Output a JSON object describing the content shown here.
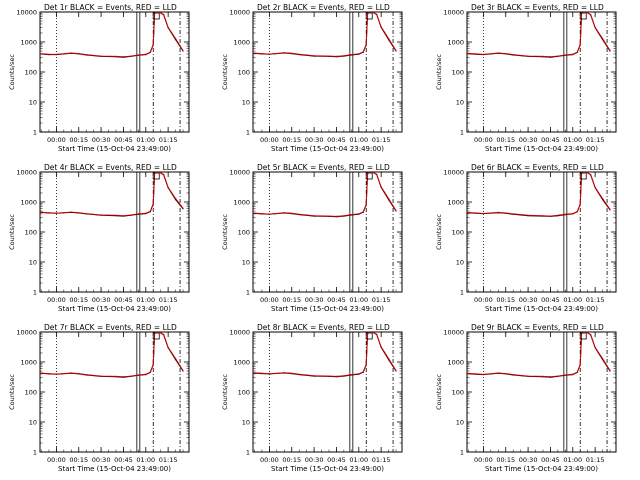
{
  "figure": {
    "xlabel": "Start Time (15-Oct-04 23:49:00)",
    "ylabel": "Counts/sec",
    "xticks": [
      "00:00",
      "00:15",
      "00:30",
      "00:45",
      "01:00",
      "01:15"
    ],
    "yticks": [
      "1",
      "10",
      "100",
      "1000",
      "10000"
    ],
    "colors": {
      "events": "#000000",
      "lld": "#cc0000",
      "axes": "#000000"
    }
  },
  "chart_data": [
    {
      "type": "line",
      "title": "Det 1r BLACK = Events, RED = LLD",
      "xlabel": "Start Time (15-Oct-04 23:49:00)",
      "ylabel": "Counts/sec",
      "yscale": "log",
      "ylim": [
        1,
        10000
      ],
      "xlim": [
        "23:49",
        "01:29"
      ],
      "x": [
        "23:49",
        "23:55",
        "00:00",
        "00:10",
        "00:15",
        "00:20",
        "00:30",
        "00:40",
        "00:45",
        "00:50",
        "00:55",
        "01:00",
        "01:03",
        "01:05",
        "01:06",
        "01:07",
        "01:09",
        "01:12",
        "01:15",
        "01:20",
        "01:25"
      ],
      "series": [
        {
          "name": "Events",
          "values": [
            400,
            380,
            380,
            420,
            400,
            370,
            330,
            320,
            310,
            330,
            360,
            380,
            450,
            800,
            10000,
            10000,
            10000,
            8000,
            3000,
            1200,
            500
          ]
        },
        {
          "name": "LLD",
          "values": [
            410,
            390,
            385,
            430,
            410,
            380,
            340,
            330,
            320,
            340,
            370,
            390,
            460,
            820,
            10000,
            10000,
            10000,
            8200,
            3100,
            1300,
            520
          ]
        }
      ]
    },
    {
      "type": "line",
      "title": "Det 2r BLACK = Events, RED = LLD",
      "xlabel": "Start Time (15-Oct-04 23:49:00)",
      "ylabel": "Counts/sec",
      "yscale": "log",
      "ylim": [
        1,
        10000
      ],
      "xlim": [
        "23:49",
        "01:29"
      ],
      "x": [
        "23:49",
        "23:55",
        "00:00",
        "00:10",
        "00:15",
        "00:20",
        "00:30",
        "00:40",
        "00:45",
        "00:50",
        "00:55",
        "01:00",
        "01:03",
        "01:05",
        "01:06",
        "01:07",
        "01:09",
        "01:12",
        "01:15",
        "01:20",
        "01:25"
      ],
      "series": [
        {
          "name": "Events",
          "values": [
            420,
            400,
            390,
            430,
            410,
            380,
            340,
            330,
            320,
            340,
            370,
            390,
            460,
            820,
            10000,
            10000,
            10000,
            8200,
            3100,
            1200,
            500
          ]
        },
        {
          "name": "LLD",
          "values": [
            430,
            410,
            395,
            440,
            420,
            390,
            350,
            340,
            330,
            350,
            380,
            400,
            470,
            840,
            10000,
            10000,
            10000,
            8400,
            3200,
            1300,
            520
          ]
        }
      ]
    },
    {
      "type": "line",
      "title": "Det 3r BLACK = Events, RED = LLD",
      "xlabel": "Start Time (15-Oct-04 23:49:00)",
      "ylabel": "Counts/sec",
      "yscale": "log",
      "ylim": [
        1,
        10000
      ],
      "xlim": [
        "23:49",
        "01:29"
      ],
      "x": [
        "23:49",
        "23:55",
        "00:00",
        "00:10",
        "00:15",
        "00:20",
        "00:30",
        "00:40",
        "00:45",
        "00:50",
        "00:55",
        "01:00",
        "01:03",
        "01:05",
        "01:06",
        "01:07",
        "01:09",
        "01:12",
        "01:15",
        "01:20",
        "01:25"
      ],
      "series": [
        {
          "name": "Events",
          "values": [
            410,
            390,
            380,
            420,
            400,
            370,
            330,
            320,
            310,
            330,
            360,
            380,
            450,
            800,
            10000,
            10000,
            10000,
            8000,
            3000,
            1200,
            500
          ]
        },
        {
          "name": "LLD",
          "values": [
            420,
            400,
            385,
            430,
            410,
            380,
            340,
            330,
            320,
            340,
            370,
            390,
            460,
            820,
            10000,
            10000,
            10000,
            8200,
            3100,
            1300,
            520
          ]
        }
      ]
    },
    {
      "type": "line",
      "title": "Det 4r BLACK = Events, RED = LLD",
      "xlabel": "Start Time (15-Oct-04 23:49:00)",
      "ylabel": "Counts/sec",
      "yscale": "log",
      "ylim": [
        1,
        10000
      ],
      "xlim": [
        "23:49",
        "01:29"
      ],
      "x": [
        "23:49",
        "23:55",
        "00:00",
        "00:10",
        "00:15",
        "00:20",
        "00:30",
        "00:40",
        "00:45",
        "00:50",
        "00:55",
        "01:00",
        "01:03",
        "01:05",
        "01:06",
        "01:07",
        "01:09",
        "01:12",
        "01:15",
        "01:20",
        "01:25"
      ],
      "series": [
        {
          "name": "Events",
          "values": [
            450,
            430,
            420,
            450,
            430,
            400,
            360,
            350,
            340,
            360,
            390,
            410,
            480,
            850,
            10000,
            10000,
            10000,
            8000,
            3000,
            1200,
            600
          ]
        },
        {
          "name": "LLD",
          "values": [
            460,
            440,
            425,
            460,
            440,
            410,
            370,
            360,
            350,
            370,
            400,
            420,
            490,
            870,
            10000,
            10000,
            10000,
            8200,
            3100,
            1300,
            620
          ]
        }
      ]
    },
    {
      "type": "line",
      "title": "Det 5r BLACK = Events, RED = LLD",
      "xlabel": "Start Time (15-Oct-04 23:49:00)",
      "ylabel": "Counts/sec",
      "yscale": "log",
      "ylim": [
        1,
        10000
      ],
      "xlim": [
        "23:49",
        "01:29"
      ],
      "x": [
        "23:49",
        "23:55",
        "00:00",
        "00:10",
        "00:15",
        "00:20",
        "00:30",
        "00:40",
        "00:45",
        "00:50",
        "00:55",
        "01:00",
        "01:03",
        "01:05",
        "01:06",
        "01:07",
        "01:09",
        "01:12",
        "01:15",
        "01:20",
        "01:25"
      ],
      "series": [
        {
          "name": "Events",
          "values": [
            420,
            400,
            390,
            430,
            410,
            380,
            340,
            330,
            320,
            340,
            370,
            390,
            460,
            820,
            10000,
            10000,
            10000,
            8200,
            3100,
            1200,
            500
          ]
        },
        {
          "name": "LLD",
          "values": [
            430,
            410,
            395,
            440,
            420,
            390,
            350,
            340,
            330,
            350,
            380,
            400,
            470,
            840,
            10000,
            10000,
            10000,
            8400,
            3200,
            1300,
            520
          ]
        }
      ]
    },
    {
      "type": "line",
      "title": "Det 6r BLACK = Events, RED = LLD",
      "xlabel": "Start Time (15-Oct-04 23:49:00)",
      "ylabel": "Counts/sec",
      "yscale": "log",
      "ylim": [
        1,
        10000
      ],
      "xlim": [
        "23:49",
        "01:29"
      ],
      "x": [
        "23:49",
        "23:55",
        "00:00",
        "00:10",
        "00:15",
        "00:20",
        "00:30",
        "00:40",
        "00:45",
        "00:50",
        "00:55",
        "01:00",
        "01:03",
        "01:05",
        "01:06",
        "01:07",
        "01:09",
        "01:12",
        "01:15",
        "01:20",
        "01:25"
      ],
      "series": [
        {
          "name": "Events",
          "values": [
            440,
            420,
            410,
            440,
            420,
            390,
            350,
            340,
            330,
            350,
            380,
            400,
            470,
            830,
            10000,
            10000,
            10000,
            8000,
            3000,
            1200,
            550
          ]
        },
        {
          "name": "LLD",
          "values": [
            450,
            430,
            415,
            450,
            430,
            400,
            360,
            350,
            340,
            360,
            390,
            410,
            480,
            850,
            10000,
            10000,
            10000,
            8200,
            3100,
            1300,
            570
          ]
        }
      ]
    },
    {
      "type": "line",
      "title": "Det 7r BLACK = Events, RED = LLD",
      "xlabel": "Start Time (15-Oct-04 23:49:00)",
      "ylabel": "Counts/sec",
      "yscale": "log",
      "ylim": [
        1,
        10000
      ],
      "xlim": [
        "23:49",
        "01:29"
      ],
      "x": [
        "23:49",
        "23:55",
        "00:00",
        "00:10",
        "00:15",
        "00:20",
        "00:30",
        "00:40",
        "00:45",
        "00:50",
        "00:55",
        "01:00",
        "01:03",
        "01:05",
        "01:06",
        "01:07",
        "01:09",
        "01:12",
        "01:15",
        "01:20",
        "01:25"
      ],
      "series": [
        {
          "name": "Events",
          "values": [
            420,
            400,
            390,
            420,
            400,
            370,
            330,
            320,
            310,
            330,
            360,
            380,
            450,
            800,
            10000,
            10000,
            10000,
            8000,
            3000,
            1200,
            500
          ]
        },
        {
          "name": "LLD",
          "values": [
            430,
            410,
            395,
            430,
            410,
            380,
            340,
            330,
            320,
            340,
            370,
            390,
            460,
            820,
            10000,
            10000,
            10000,
            8200,
            3100,
            1300,
            520
          ]
        }
      ]
    },
    {
      "type": "line",
      "title": "Det 8r BLACK = Events, RED = LLD",
      "xlabel": "Start Time (15-Oct-04 23:49:00)",
      "ylabel": "Counts/sec",
      "yscale": "log",
      "ylim": [
        1,
        10000
      ],
      "xlim": [
        "23:49",
        "01:29"
      ],
      "x": [
        "23:49",
        "23:55",
        "00:00",
        "00:10",
        "00:15",
        "00:20",
        "00:30",
        "00:40",
        "00:45",
        "00:50",
        "00:55",
        "01:00",
        "01:03",
        "01:05",
        "01:06",
        "01:07",
        "01:09",
        "01:12",
        "01:15",
        "01:20",
        "01:25"
      ],
      "series": [
        {
          "name": "Events",
          "values": [
            430,
            410,
            400,
            430,
            410,
            380,
            340,
            330,
            320,
            340,
            370,
            390,
            460,
            820,
            10000,
            10000,
            10000,
            8200,
            3100,
            1200,
            500
          ]
        },
        {
          "name": "LLD",
          "values": [
            440,
            420,
            405,
            440,
            420,
            390,
            350,
            340,
            330,
            350,
            380,
            400,
            470,
            840,
            10000,
            10000,
            10000,
            8400,
            3200,
            1300,
            520
          ]
        }
      ]
    },
    {
      "type": "line",
      "title": "Det 9r BLACK = Events, RED = LLD",
      "xlabel": "Start Time (15-Oct-04 23:49:00)",
      "ylabel": "Counts/sec",
      "yscale": "log",
      "ylim": [
        1,
        10000
      ],
      "xlim": [
        "23:49",
        "01:29"
      ],
      "x": [
        "23:49",
        "23:55",
        "00:00",
        "00:10",
        "00:15",
        "00:20",
        "00:30",
        "00:40",
        "00:45",
        "00:50",
        "00:55",
        "01:00",
        "01:03",
        "01:05",
        "01:06",
        "01:07",
        "01:09",
        "01:12",
        "01:15",
        "01:20",
        "01:25"
      ],
      "series": [
        {
          "name": "Events",
          "values": [
            410,
            390,
            380,
            420,
            400,
            370,
            330,
            320,
            310,
            330,
            360,
            380,
            450,
            800,
            10000,
            10000,
            10000,
            8000,
            3000,
            1200,
            500
          ]
        },
        {
          "name": "LLD",
          "values": [
            420,
            400,
            385,
            430,
            410,
            380,
            340,
            330,
            320,
            340,
            370,
            390,
            460,
            820,
            10000,
            10000,
            10000,
            8200,
            3100,
            1300,
            520
          ]
        }
      ]
    }
  ]
}
